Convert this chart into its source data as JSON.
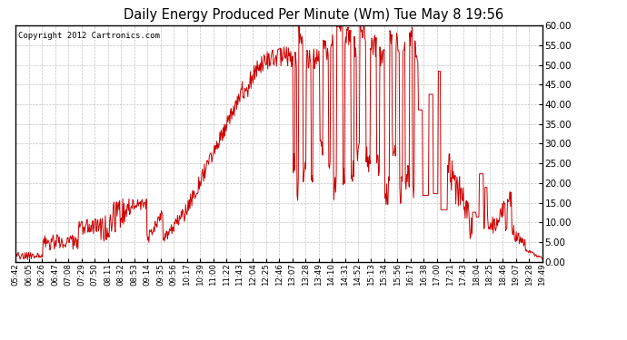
{
  "title": "Daily Energy Produced Per Minute (Wm) Tue May 8 19:56",
  "copyright": "Copyright 2012 Cartronics.com",
  "line_color": "#cc0000",
  "background_color": "#ffffff",
  "plot_bg_color": "#ffffff",
  "grid_color": "#aaaaaa",
  "ylim": [
    0,
    60
  ],
  "yticks": [
    0,
    5,
    10,
    15,
    20,
    25,
    30,
    35,
    40,
    45,
    50,
    55,
    60
  ],
  "x_labels": [
    "05:42",
    "06:05",
    "06:26",
    "06:47",
    "07:08",
    "07:29",
    "07:50",
    "08:11",
    "08:32",
    "08:53",
    "09:14",
    "09:35",
    "09:56",
    "10:17",
    "10:39",
    "11:00",
    "11:22",
    "11:43",
    "12:04",
    "12:25",
    "12:46",
    "13:07",
    "13:28",
    "13:49",
    "14:10",
    "14:31",
    "14:52",
    "15:13",
    "15:34",
    "15:56",
    "16:17",
    "16:38",
    "17:00",
    "17:21",
    "17:43",
    "18:04",
    "18:25",
    "18:46",
    "19:07",
    "19:28",
    "19:49"
  ],
  "figsize": [
    6.9,
    3.75
  ],
  "dpi": 100
}
